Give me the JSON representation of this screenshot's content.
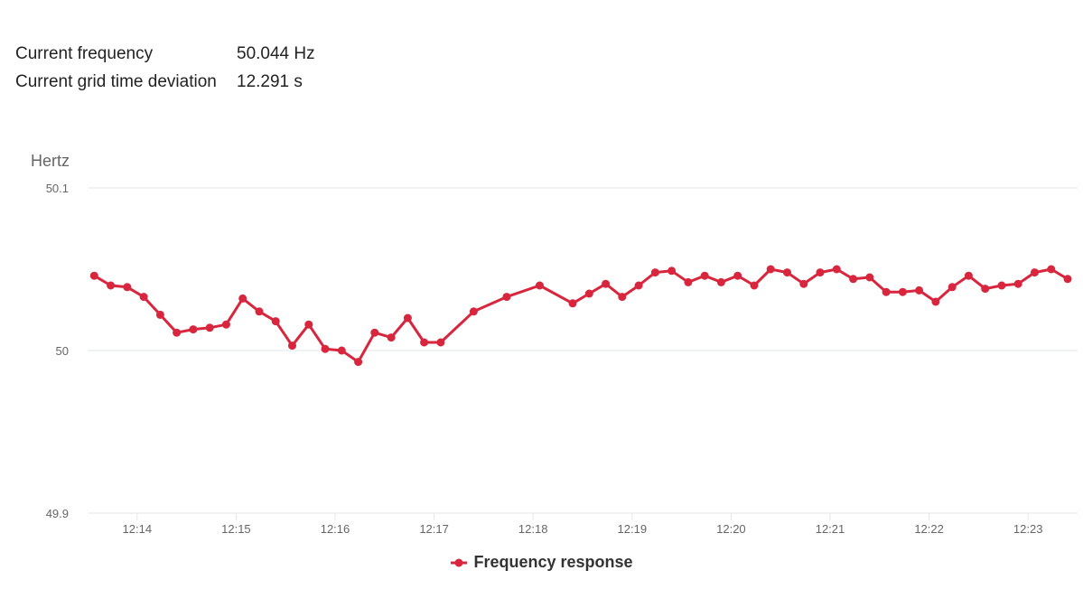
{
  "stats": [
    {
      "label": "Current frequency",
      "value": "50.044 Hz"
    },
    {
      "label": "Current grid time deviation",
      "value": "12.291 s"
    }
  ],
  "colors": {
    "series": "#d7263d",
    "grid": "#e3e6ea",
    "tick": "#666666",
    "axis_title": "#666666"
  },
  "chart_data": {
    "type": "line",
    "ylabel": "Hertz",
    "ylim": [
      49.9,
      50.1
    ],
    "yticks": [
      49.9,
      50,
      50.1
    ],
    "ytick_labels": [
      "49.9",
      "50",
      "50.1"
    ],
    "xlim": [
      "12:13:30",
      "12:23:30"
    ],
    "xticks": [
      "12:14",
      "12:15",
      "12:16",
      "12:17",
      "12:18",
      "12:19",
      "12:20",
      "12:21",
      "12:22",
      "12:23"
    ],
    "legend_position": "bottom-center",
    "grid": true,
    "series": [
      {
        "name": "Frequency response",
        "x": [
          "12:13:34",
          "12:13:44",
          "12:13:54",
          "12:14:04",
          "12:14:14",
          "12:14:24",
          "12:14:34",
          "12:14:44",
          "12:14:54",
          "12:15:04",
          "12:15:14",
          "12:15:24",
          "12:15:34",
          "12:15:44",
          "12:15:54",
          "12:16:04",
          "12:16:14",
          "12:16:24",
          "12:16:34",
          "12:16:44",
          "12:16:54",
          "12:17:04",
          "12:17:24",
          "12:17:44",
          "12:18:04",
          "12:18:24",
          "12:18:34",
          "12:18:44",
          "12:18:54",
          "12:19:04",
          "12:19:14",
          "12:19:24",
          "12:19:34",
          "12:19:44",
          "12:19:54",
          "12:20:04",
          "12:20:14",
          "12:20:24",
          "12:20:34",
          "12:20:44",
          "12:20:54",
          "12:21:04",
          "12:21:14",
          "12:21:24",
          "12:21:34",
          "12:21:44",
          "12:21:54",
          "12:22:04",
          "12:22:14",
          "12:22:24",
          "12:22:34",
          "12:22:44",
          "12:22:54",
          "12:23:04",
          "12:23:14",
          "12:23:24"
        ],
        "y": [
          50.046,
          50.04,
          50.039,
          50.033,
          50.022,
          50.011,
          50.013,
          50.014,
          50.016,
          50.032,
          50.024,
          50.018,
          50.003,
          50.016,
          50.001,
          50,
          49.993,
          50.011,
          50.008,
          50.02,
          50.005,
          50.005,
          50.024,
          50.033,
          50.04,
          50.029,
          50.035,
          50.041,
          50.033,
          50.04,
          50.048,
          50.049,
          50.042,
          50.046,
          50.042,
          50.046,
          50.04,
          50.05,
          50.048,
          50.041,
          50.048,
          50.05,
          50.044,
          50.045,
          50.036,
          50.036,
          50.037,
          50.03,
          50.039,
          50.046,
          50.038,
          50.04,
          50.041,
          50.048,
          50.05,
          50.044
        ]
      }
    ]
  }
}
